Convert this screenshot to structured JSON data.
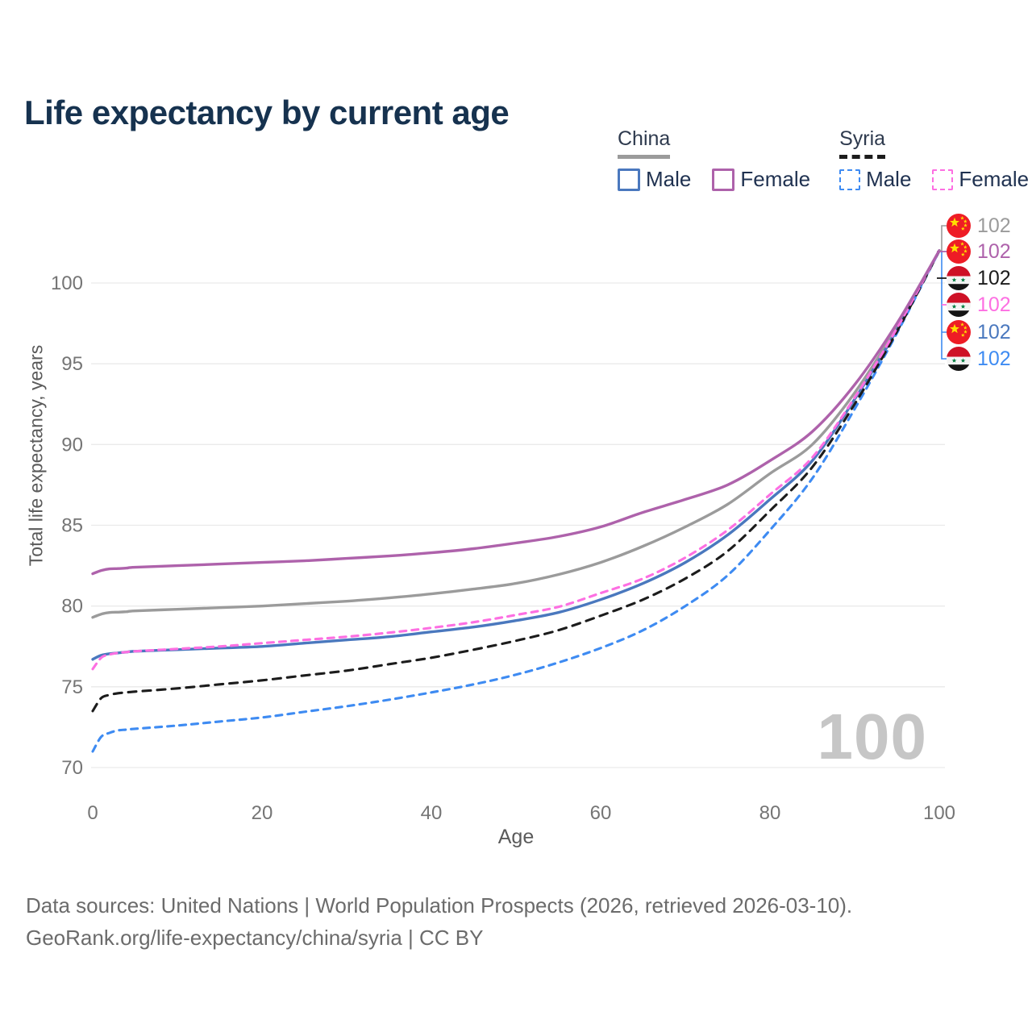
{
  "title": "Life expectancy by current age",
  "legend": {
    "groups": [
      {
        "id": "china",
        "label": "China",
        "style": "solid",
        "items": [
          {
            "label": "Male",
            "series": "china_male"
          },
          {
            "label": "Female",
            "series": "china_female"
          }
        ]
      },
      {
        "id": "syria",
        "label": "Syria",
        "style": "dashed",
        "items": [
          {
            "label": "Male",
            "series": "syria_male"
          },
          {
            "label": "Female",
            "series": "syria_female"
          }
        ]
      }
    ]
  },
  "colors": {
    "china_male": "#4A78BE",
    "china_female": "#AE62AB",
    "china_all": "#9B9B9B",
    "syria_male": "#3E8BF2",
    "syria_female": "#FD6FE2",
    "syria_all": "#1C1C1C",
    "title": "#16324F",
    "tick_label": "#757575",
    "grid": "#EAEAEA",
    "watermark": "#C6C6C6",
    "flag_china_red": "#EE1C25",
    "flag_china_yellow": "#FFDE00",
    "flag_syria_red": "#CE1126",
    "flag_syria_green": "#007A3D",
    "flag_syria_black": "#151515"
  },
  "chart_data": {
    "type": "line",
    "title": "Life expectancy by current age",
    "xlabel": "Age",
    "ylabel": "Total life expectancy, years",
    "xlim": [
      0,
      100
    ],
    "ylim": [
      70,
      102.5
    ],
    "xticks": [
      0,
      20,
      40,
      60,
      80,
      100
    ],
    "yticks": [
      70,
      75,
      80,
      85,
      90,
      95,
      100
    ],
    "grid": "horizontal-only",
    "legend_position": "top-right",
    "watermark": "100",
    "x": [
      0,
      1,
      2,
      3,
      4,
      5,
      10,
      15,
      20,
      25,
      30,
      35,
      40,
      45,
      50,
      55,
      60,
      65,
      70,
      75,
      80,
      85,
      90,
      95,
      100
    ],
    "series": [
      {
        "name": "China",
        "country": "China",
        "sex": "all",
        "key": "china_all",
        "dash": "solid",
        "values": [
          79.3,
          79.5,
          79.6,
          79.62,
          79.65,
          79.7,
          79.8,
          79.9,
          80.0,
          80.15,
          80.3,
          80.5,
          80.75,
          81.05,
          81.4,
          81.95,
          82.7,
          83.7,
          84.9,
          86.3,
          88.2,
          90.0,
          93.2,
          97.3,
          102
        ]
      },
      {
        "name": "China Male",
        "country": "China",
        "sex": "male",
        "key": "china_male",
        "dash": "solid",
        "values": [
          76.7,
          76.95,
          77.05,
          77.1,
          77.15,
          77.2,
          77.3,
          77.4,
          77.5,
          77.7,
          77.9,
          78.1,
          78.4,
          78.7,
          79.1,
          79.6,
          80.4,
          81.4,
          82.7,
          84.4,
          86.6,
          89.0,
          92.8,
          97.1,
          102
        ]
      },
      {
        "name": "Syria Male",
        "country": "Syria",
        "sex": "male",
        "key": "syria_male",
        "dash": "dashed",
        "values": [
          71.0,
          71.9,
          72.15,
          72.3,
          72.35,
          72.4,
          72.6,
          72.85,
          73.1,
          73.45,
          73.8,
          74.2,
          74.65,
          75.15,
          75.75,
          76.5,
          77.4,
          78.5,
          80.0,
          81.9,
          84.7,
          87.9,
          92.2,
          96.9,
          102
        ]
      },
      {
        "name": "Syria",
        "country": "Syria",
        "sex": "all",
        "key": "syria_all",
        "dash": "dashed",
        "values": [
          73.5,
          74.3,
          74.5,
          74.6,
          74.65,
          74.7,
          74.9,
          75.15,
          75.4,
          75.7,
          76.0,
          76.4,
          76.8,
          77.3,
          77.85,
          78.5,
          79.4,
          80.4,
          81.7,
          83.4,
          85.9,
          88.6,
          92.5,
          97.0,
          102
        ]
      },
      {
        "name": "Syria Female",
        "country": "Syria",
        "sex": "female",
        "key": "syria_female",
        "dash": "dashed",
        "values": [
          76.1,
          76.8,
          77.0,
          77.1,
          77.15,
          77.2,
          77.35,
          77.5,
          77.7,
          77.9,
          78.1,
          78.35,
          78.65,
          79.0,
          79.45,
          79.95,
          80.8,
          81.7,
          83.0,
          84.7,
          86.9,
          89.2,
          92.9,
          97.2,
          102
        ]
      },
      {
        "name": "China Female",
        "country": "China",
        "sex": "female",
        "key": "china_female",
        "dash": "solid",
        "values": [
          82.0,
          82.2,
          82.3,
          82.32,
          82.35,
          82.4,
          82.5,
          82.6,
          82.7,
          82.8,
          82.95,
          83.1,
          83.3,
          83.55,
          83.9,
          84.3,
          84.9,
          85.8,
          86.6,
          87.5,
          89.0,
          90.8,
          93.7,
          97.5,
          102
        ]
      }
    ],
    "end_labels": [
      {
        "value": "102",
        "series": "china_all",
        "flag": "china"
      },
      {
        "value": "102",
        "series": "china_female",
        "flag": "china"
      },
      {
        "value": "102",
        "series": "syria_all",
        "flag": "syria"
      },
      {
        "value": "102",
        "series": "syria_female",
        "flag": "syria"
      },
      {
        "value": "102",
        "series": "china_male",
        "flag": "china"
      },
      {
        "value": "102",
        "series": "syria_male",
        "flag": "syria"
      }
    ]
  },
  "footer": {
    "line1": "Data sources: United Nations | World Population Prospects (2026, retrieved 2026-03-10).",
    "line2": "GeoRank.org/life-expectancy/china/syria | CC BY"
  }
}
